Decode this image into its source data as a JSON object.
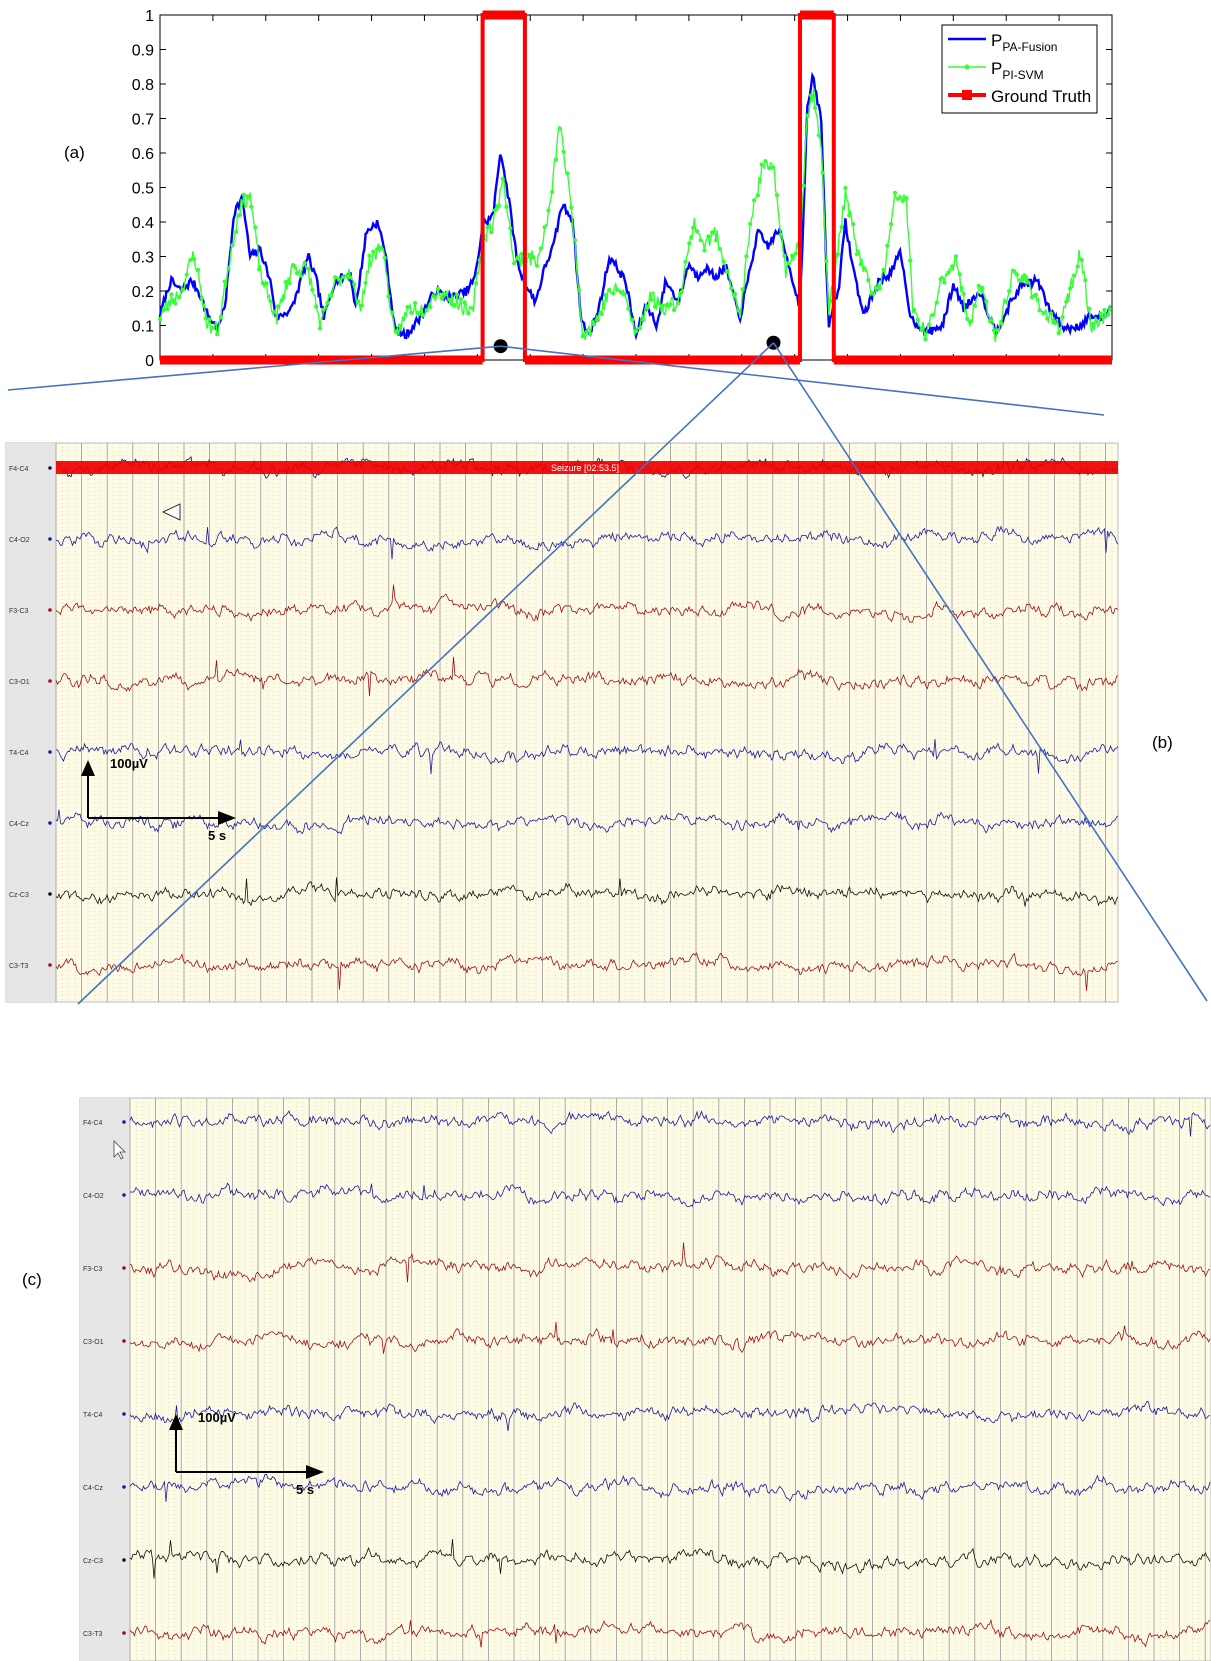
{
  "panels": {
    "a": "(a)",
    "b": "(b)",
    "c": "(c)"
  },
  "chart_data": [
    {
      "type": "line",
      "panel": "(a)",
      "ylim": [
        0,
        1
      ],
      "yticks": [
        "0",
        "0.1",
        "0.2",
        "0.3",
        "0.4",
        "0.5",
        "0.6",
        "0.7",
        "0.8",
        "0.9",
        "1"
      ],
      "x_range": [
        0,
        900
      ],
      "grid": false,
      "legend_position": "top-right",
      "series": [
        {
          "name_main": "P",
          "name_sub": "PA-Fusion",
          "color": "#0000ff",
          "anchors": [
            [
              0,
              0.13
            ],
            [
              10,
              0.23
            ],
            [
              20,
              0.2
            ],
            [
              30,
              0.23
            ],
            [
              38,
              0.19
            ],
            [
              45,
              0.13
            ],
            [
              55,
              0.09
            ],
            [
              62,
              0.17
            ],
            [
              70,
              0.43
            ],
            [
              78,
              0.47
            ],
            [
              85,
              0.3
            ],
            [
              95,
              0.32
            ],
            [
              105,
              0.22
            ],
            [
              110,
              0.12
            ],
            [
              125,
              0.15
            ],
            [
              140,
              0.3
            ],
            [
              148,
              0.23
            ],
            [
              155,
              0.12
            ],
            [
              165,
              0.23
            ],
            [
              180,
              0.25
            ],
            [
              185,
              0.15
            ],
            [
              195,
              0.37
            ],
            [
              205,
              0.4
            ],
            [
              212,
              0.33
            ],
            [
              222,
              0.09
            ],
            [
              232,
              0.07
            ],
            [
              245,
              0.12
            ],
            [
              260,
              0.2
            ],
            [
              275,
              0.18
            ],
            [
              290,
              0.2
            ],
            [
              298,
              0.24
            ],
            [
              305,
              0.39
            ],
            [
              315,
              0.42
            ],
            [
              322,
              0.61
            ],
            [
              330,
              0.46
            ],
            [
              338,
              0.28
            ],
            [
              345,
              0.22
            ],
            [
              355,
              0.17
            ],
            [
              365,
              0.28
            ],
            [
              372,
              0.33
            ],
            [
              380,
              0.45
            ],
            [
              390,
              0.41
            ],
            [
              398,
              0.12
            ],
            [
              405,
              0.07
            ],
            [
              415,
              0.15
            ],
            [
              425,
              0.3
            ],
            [
              440,
              0.23
            ],
            [
              450,
              0.07
            ],
            [
              460,
              0.16
            ],
            [
              470,
              0.1
            ],
            [
              478,
              0.23
            ],
            [
              490,
              0.17
            ],
            [
              500,
              0.28
            ],
            [
              508,
              0.24
            ],
            [
              515,
              0.27
            ],
            [
              525,
              0.24
            ],
            [
              535,
              0.27
            ],
            [
              548,
              0.12
            ],
            [
              555,
              0.22
            ],
            [
              565,
              0.37
            ],
            [
              575,
              0.33
            ],
            [
              585,
              0.38
            ],
            [
              595,
              0.27
            ],
            [
              605,
              0.15
            ],
            [
              612,
              0.73
            ],
            [
              617,
              0.82
            ],
            [
              625,
              0.7
            ],
            [
              632,
              0.1
            ],
            [
              642,
              0.22
            ],
            [
              648,
              0.4
            ],
            [
              655,
              0.27
            ],
            [
              665,
              0.13
            ],
            [
              680,
              0.23
            ],
            [
              690,
              0.25
            ],
            [
              700,
              0.31
            ],
            [
              710,
              0.12
            ],
            [
              725,
              0.08
            ],
            [
              740,
              0.1
            ],
            [
              750,
              0.22
            ],
            [
              760,
              0.15
            ],
            [
              775,
              0.2
            ],
            [
              790,
              0.08
            ],
            [
              805,
              0.17
            ],
            [
              815,
              0.22
            ],
            [
              830,
              0.23
            ],
            [
              840,
              0.15
            ],
            [
              855,
              0.09
            ],
            [
              870,
              0.1
            ],
            [
              880,
              0.13
            ],
            [
              890,
              0.12
            ],
            [
              900,
              0.15
            ]
          ]
        },
        {
          "name_main": "P",
          "name_sub": "PI-SVM",
          "color": "#33ff33",
          "anchors": [
            [
              0,
              0.13
            ],
            [
              10,
              0.17
            ],
            [
              20,
              0.2
            ],
            [
              32,
              0.31
            ],
            [
              45,
              0.1
            ],
            [
              55,
              0.09
            ],
            [
              65,
              0.28
            ],
            [
              75,
              0.44
            ],
            [
              85,
              0.48
            ],
            [
              95,
              0.25
            ],
            [
              110,
              0.12
            ],
            [
              125,
              0.27
            ],
            [
              140,
              0.26
            ],
            [
              152,
              0.1
            ],
            [
              165,
              0.22
            ],
            [
              180,
              0.26
            ],
            [
              188,
              0.14
            ],
            [
              198,
              0.28
            ],
            [
              210,
              0.34
            ],
            [
              222,
              0.06
            ],
            [
              235,
              0.15
            ],
            [
              250,
              0.15
            ],
            [
              262,
              0.2
            ],
            [
              280,
              0.17
            ],
            [
              295,
              0.13
            ],
            [
              305,
              0.35
            ],
            [
              315,
              0.4
            ],
            [
              325,
              0.52
            ],
            [
              335,
              0.28
            ],
            [
              345,
              0.3
            ],
            [
              358,
              0.29
            ],
            [
              368,
              0.43
            ],
            [
              378,
              0.69
            ],
            [
              390,
              0.41
            ],
            [
              400,
              0.07
            ],
            [
              415,
              0.13
            ],
            [
              425,
              0.2
            ],
            [
              438,
              0.2
            ],
            [
              450,
              0.07
            ],
            [
              463,
              0.19
            ],
            [
              475,
              0.15
            ],
            [
              490,
              0.17
            ],
            [
              505,
              0.4
            ],
            [
              515,
              0.33
            ],
            [
              525,
              0.37
            ],
            [
              535,
              0.28
            ],
            [
              548,
              0.12
            ],
            [
              560,
              0.43
            ],
            [
              570,
              0.56
            ],
            [
              580,
              0.55
            ],
            [
              592,
              0.25
            ],
            [
              605,
              0.35
            ],
            [
              612,
              0.71
            ],
            [
              618,
              0.78
            ],
            [
              625,
              0.62
            ],
            [
              632,
              0.14
            ],
            [
              648,
              0.48
            ],
            [
              660,
              0.31
            ],
            [
              675,
              0.18
            ],
            [
              685,
              0.26
            ],
            [
              695,
              0.47
            ],
            [
              705,
              0.48
            ],
            [
              712,
              0.14
            ],
            [
              725,
              0.07
            ],
            [
              740,
              0.24
            ],
            [
              752,
              0.29
            ],
            [
              765,
              0.1
            ],
            [
              775,
              0.22
            ],
            [
              790,
              0.06
            ],
            [
              805,
              0.24
            ],
            [
              820,
              0.23
            ],
            [
              835,
              0.14
            ],
            [
              850,
              0.09
            ],
            [
              870,
              0.31
            ],
            [
              880,
              0.1
            ],
            [
              890,
              0.12
            ],
            [
              900,
              0.15
            ]
          ]
        },
        {
          "name": "Ground Truth",
          "color": "#ff0000",
          "segments": [
            [
              0,
              305,
              0
            ],
            [
              305,
              345,
              1
            ],
            [
              345,
              605,
              0
            ],
            [
              605,
              637,
              1
            ],
            [
              637,
              900,
              0
            ]
          ]
        }
      ],
      "markers": [
        [
          322,
          0.04
        ],
        [
          580,
          0.05
        ]
      ]
    },
    {
      "type": "line",
      "panel": "(b)",
      "channels": [
        {
          "label": "F4-C4",
          "color": "#101060"
        },
        {
          "label": "C4-O2",
          "color": "#1a1aa0"
        },
        {
          "label": "F3-C3",
          "color": "#a01010"
        },
        {
          "label": "C3-O1",
          "color": "#a01010"
        },
        {
          "label": "T4-C4",
          "color": "#1a1aa0"
        },
        {
          "label": "C4-Cz",
          "color": "#1a1aa0"
        },
        {
          "label": "Cz-C3",
          "color": "#111111"
        },
        {
          "label": "C3-T3",
          "color": "#a01010"
        }
      ],
      "annotation": "Seizure [02:53.5]",
      "scale_amplitude": "100µV",
      "scale_time": "5 s"
    },
    {
      "type": "line",
      "panel": "(c)",
      "channels": [
        {
          "label": "F4-C4",
          "color": "#1a1aa0"
        },
        {
          "label": "C4-O2",
          "color": "#1a1aa0"
        },
        {
          "label": "F3-C3",
          "color": "#a01010"
        },
        {
          "label": "C3-O1",
          "color": "#a01010"
        },
        {
          "label": "T4-C4",
          "color": "#1a1aa0"
        },
        {
          "label": "C4-Cz",
          "color": "#1a1aa0"
        },
        {
          "label": "Cz-C3",
          "color": "#111111"
        },
        {
          "label": "C3-T3",
          "color": "#a01010"
        }
      ],
      "scale_amplitude": "100µV",
      "scale_time": "5 s"
    }
  ]
}
